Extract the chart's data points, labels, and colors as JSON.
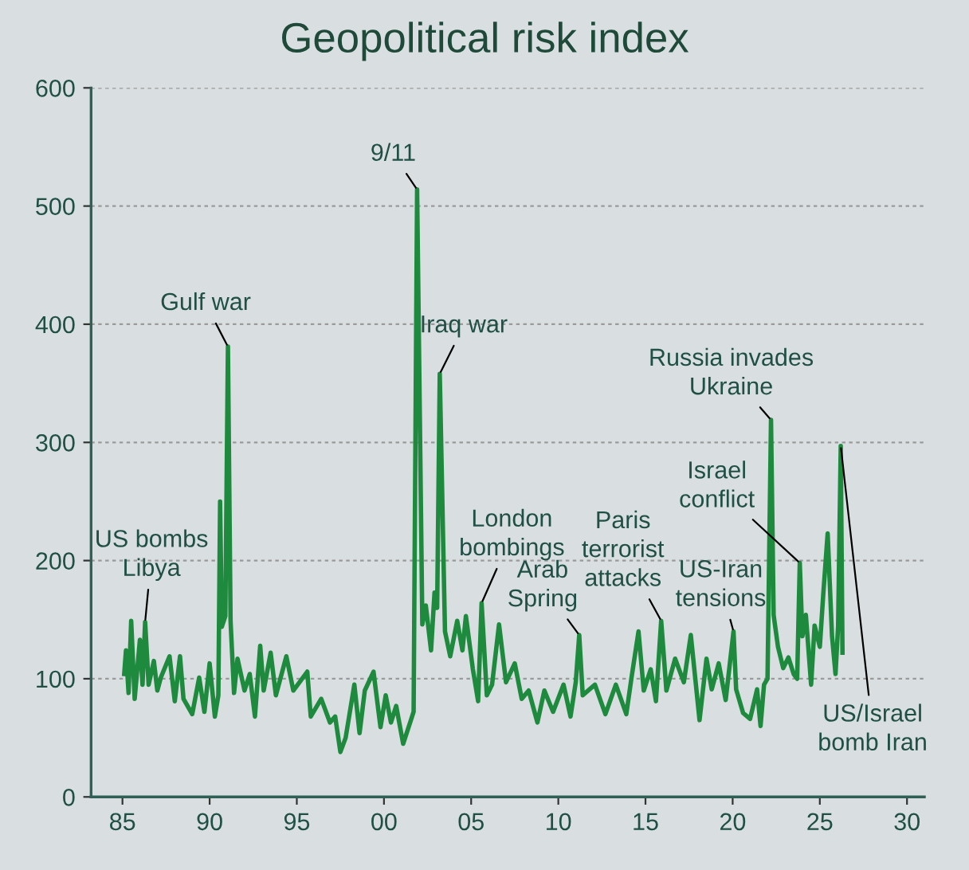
{
  "chart_data": {
    "type": "line",
    "title": "Geopolitical risk index",
    "xlim": [
      1983.2,
      2031
    ],
    "ylim": [
      0,
      600
    ],
    "xticks": [
      {
        "value": 1985,
        "label": "85"
      },
      {
        "value": 1990,
        "label": "90"
      },
      {
        "value": 1995,
        "label": "95"
      },
      {
        "value": 2000,
        "label": "00"
      },
      {
        "value": 2005,
        "label": "05"
      },
      {
        "value": 2010,
        "label": "10"
      },
      {
        "value": 2015,
        "label": "15"
      },
      {
        "value": 2020,
        "label": "20"
      },
      {
        "value": 2025,
        "label": "25"
      },
      {
        "value": 2030,
        "label": "30"
      }
    ],
    "yticks": [
      0,
      100,
      200,
      300,
      400,
      500,
      600
    ],
    "grid": "y",
    "legend": false,
    "marker": "none",
    "line_style": "solid",
    "series": [
      {
        "color": "#1e8a3e",
        "x": [
          1985.1,
          1985.2,
          1985.35,
          1985.5,
          1985.7,
          1986.0,
          1986.15,
          1986.3,
          1986.5,
          1986.8,
          1987.0,
          1987.2,
          1987.7,
          1988.0,
          1988.3,
          1988.5,
          1989.0,
          1989.4,
          1989.7,
          1990.0,
          1990.3,
          1990.5,
          1990.6,
          1990.7,
          1990.9,
          1991.05,
          1991.2,
          1991.4,
          1991.6,
          1992.0,
          1992.3,
          1992.6,
          1992.9,
          1993.1,
          1993.5,
          1993.8,
          1994.4,
          1994.8,
          1995.6,
          1995.8,
          1996.4,
          1996.9,
          1997.2,
          1997.5,
          1997.8,
          1998.3,
          1998.6,
          1998.9,
          1999.4,
          1999.8,
          2000.1,
          2000.4,
          2000.7,
          2001.1,
          2001.5,
          2001.7,
          2001.9,
          2002.2,
          2002.4,
          2002.7,
          2002.9,
          2003.05,
          2003.2,
          2003.5,
          2003.8,
          2004.2,
          2004.5,
          2004.7,
          2005.1,
          2005.4,
          2005.6,
          2005.9,
          2006.2,
          2006.6,
          2007.0,
          2007.5,
          2007.9,
          2008.3,
          2008.8,
          2009.2,
          2009.7,
          2010.3,
          2010.7,
          2011.0,
          2011.2,
          2011.4,
          2012.1,
          2012.7,
          2013.3,
          2013.9,
          2014.2,
          2014.6,
          2014.9,
          2015.3,
          2015.6,
          2015.9,
          2016.2,
          2016.7,
          2017.2,
          2017.6,
          2018.1,
          2018.5,
          2018.8,
          2019.2,
          2019.6,
          2020.05,
          2020.2,
          2020.6,
          2021.0,
          2021.4,
          2021.6,
          2021.8,
          2022.0,
          2022.2,
          2022.35,
          2022.6,
          2022.9,
          2023.2,
          2023.5,
          2023.7,
          2023.85,
          2024.0,
          2024.2,
          2024.5,
          2024.7,
          2025.0,
          2025.2,
          2025.45,
          2025.7,
          2025.9,
          2026.05,
          2026.2,
          2026.3
        ],
        "values": [
          104,
          124,
          88,
          149,
          83,
          133,
          95,
          148,
          95,
          115,
          90,
          101,
          119,
          81,
          119,
          83,
          70,
          101,
          72,
          113,
          68,
          86,
          250,
          144,
          153,
          381,
          149,
          88,
          117,
          90,
          104,
          68,
          128,
          90,
          122,
          86,
          119,
          90,
          106,
          68,
          83,
          63,
          68,
          38,
          50,
          95,
          54,
          90,
          106,
          59,
          86,
          63,
          77,
          45,
          63,
          72,
          514,
          146,
          162,
          124,
          173,
          160,
          358,
          140,
          119,
          149,
          124,
          153,
          108,
          81,
          164,
          86,
          95,
          146,
          97,
          113,
          83,
          90,
          63,
          90,
          72,
          95,
          68,
          97,
          137,
          86,
          95,
          70,
          95,
          70,
          101,
          140,
          90,
          108,
          81,
          149,
          90,
          117,
          97,
          137,
          65,
          117,
          91,
          113,
          82,
          140,
          91,
          71,
          66,
          91,
          60,
          95,
          100,
          319,
          154,
          127,
          109,
          118,
          104,
          100,
          198,
          136,
          154,
          95,
          145,
          127,
          172,
          223,
          136,
          104,
          145,
          297,
          122
        ]
      }
    ],
    "annotations": [
      {
        "text": "US bombs\nLibya",
        "x": 1986.3,
        "y": 148
      },
      {
        "text": "Gulf war",
        "x": 1991.05,
        "y": 381
      },
      {
        "text": "9/11",
        "x": 2001.9,
        "y": 514
      },
      {
        "text": "Iraq war",
        "x": 2003.2,
        "y": 358
      },
      {
        "text": "London\nbombings",
        "x": 2005.6,
        "y": 164
      },
      {
        "text": "Arab\nSpring",
        "x": 2011.2,
        "y": 137
      },
      {
        "text": "Paris\nterrorist\nattacks",
        "x": 2015.9,
        "y": 149
      },
      {
        "text": "US-Iran\ntensions",
        "x": 2020.05,
        "y": 140
      },
      {
        "text": "Russia invades\nUkraine",
        "x": 2022.2,
        "y": 319
      },
      {
        "text": "Israel\nconflict",
        "x": 2023.85,
        "y": 198
      },
      {
        "text": "US/Israel\nbomb Iran",
        "x": 2026.2,
        "y": 297
      }
    ]
  }
}
